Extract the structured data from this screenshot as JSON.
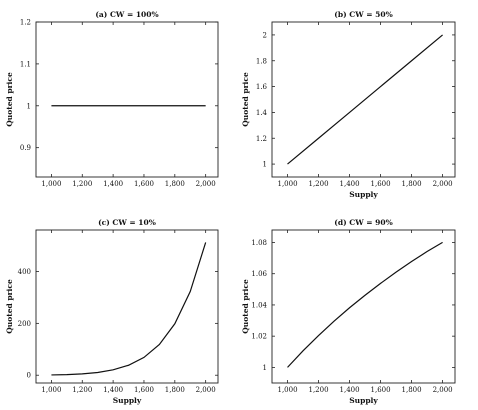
{
  "chart_data": [
    {
      "type": "line",
      "title": "(a) CW = 100%",
      "xlabel": "",
      "ylabel": "Quoted price",
      "xlim": [
        900,
        2080
      ],
      "ylim": [
        0.83,
        1.2
      ],
      "xticks": [
        1000,
        1200,
        1400,
        1600,
        1800,
        2000
      ],
      "xtick_labels": [
        "1,000",
        "1,200",
        "1,400",
        "1,600",
        "1,800",
        "2,000"
      ],
      "yticks": [
        0.9,
        1,
        1.1,
        1.2
      ],
      "ytick_labels": [
        "0.9",
        "1",
        "1.1",
        "1.2"
      ],
      "series": [
        {
          "x": [
            1000,
            1200,
            1400,
            1600,
            1800,
            2000
          ],
          "y": [
            1,
            1,
            1,
            1,
            1,
            1
          ]
        }
      ]
    },
    {
      "type": "line",
      "title": "(b) CW = 50%",
      "xlabel": "Supply",
      "ylabel": "Quoted price",
      "xlim": [
        900,
        2080
      ],
      "ylim": [
        0.9,
        2.1
      ],
      "xticks": [
        1000,
        1200,
        1400,
        1600,
        1800,
        2000
      ],
      "xtick_labels": [
        "1,000",
        "1,200",
        "1,400",
        "1,600",
        "1,800",
        "2,000"
      ],
      "yticks": [
        1,
        1.2,
        1.4,
        1.6,
        1.8,
        2
      ],
      "ytick_labels": [
        "1",
        "1.2",
        "1.4",
        "1.6",
        "1.8",
        "2"
      ],
      "series": [
        {
          "x": [
            1000,
            1200,
            1400,
            1600,
            1800,
            2000
          ],
          "y": [
            1,
            1.2,
            1.4,
            1.6,
            1.8,
            2
          ]
        }
      ]
    },
    {
      "type": "line",
      "title": "(c) CW = 10%",
      "xlabel": "Supply",
      "ylabel": "Quoted price",
      "xlim": [
        900,
        2080
      ],
      "ylim": [
        -30,
        560
      ],
      "xticks": [
        1000,
        1200,
        1400,
        1600,
        1800,
        2000
      ],
      "xtick_labels": [
        "1,000",
        "1,200",
        "1,400",
        "1,600",
        "1,800",
        "2,000"
      ],
      "yticks": [
        0,
        200,
        400
      ],
      "ytick_labels": [
        "0",
        "200",
        "400"
      ],
      "series": [
        {
          "x": [
            1000,
            1100,
            1200,
            1300,
            1400,
            1500,
            1600,
            1700,
            1800,
            1900,
            2000
          ],
          "y": [
            1,
            2.4,
            5.2,
            10.6,
            20.7,
            38.4,
            68.7,
            118.6,
            198.4,
            322.7,
            512
          ]
        }
      ]
    },
    {
      "type": "line",
      "title": "(d) CW = 90%",
      "xlabel": "Supply",
      "ylabel": "Quoted price",
      "xlim": [
        900,
        2080
      ],
      "ylim": [
        0.99,
        1.088
      ],
      "xticks": [
        1000,
        1200,
        1400,
        1600,
        1800,
        2000
      ],
      "xtick_labels": [
        "1,000",
        "1,200",
        "1,400",
        "1,600",
        "1,800",
        "2,000"
      ],
      "yticks": [
        1,
        1.02,
        1.04,
        1.06,
        1.08
      ],
      "ytick_labels": [
        "1",
        "1.02",
        "1.04",
        "1.06",
        "1.08"
      ],
      "series": [
        {
          "x": [
            1000,
            1100,
            1200,
            1300,
            1400,
            1500,
            1600,
            1700,
            1800,
            1900,
            2000
          ],
          "y": [
            1,
            1.0106,
            1.0204,
            1.0296,
            1.0382,
            1.0462,
            1.0538,
            1.061,
            1.0678,
            1.0742,
            1.0801
          ]
        }
      ]
    }
  ]
}
